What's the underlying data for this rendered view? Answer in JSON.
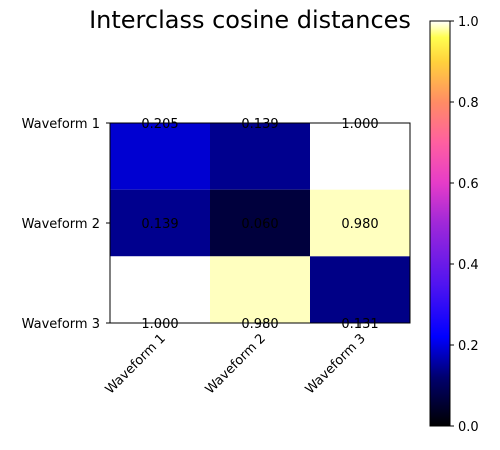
{
  "chart_data": {
    "type": "heatmap",
    "title": "Interclass cosine distances",
    "x_categories": [
      "Waveform 1",
      "Waveform 2",
      "Waveform 3"
    ],
    "y_categories": [
      "Waveform 1",
      "Waveform 2",
      "Waveform 3"
    ],
    "values": [
      [
        0.205,
        0.139,
        1.0
      ],
      [
        0.139,
        0.06,
        0.98
      ],
      [
        1.0,
        0.98,
        0.131
      ]
    ],
    "cell_labels": [
      [
        "0.205",
        "0.139",
        "1.000"
      ],
      [
        "0.139",
        "0.060",
        "0.980"
      ],
      [
        "1.000",
        "0.980",
        "0.131"
      ]
    ],
    "colormap": "gnuplot2",
    "vmin": 0.0,
    "vmax": 1.0,
    "colorbar_ticks": [
      "0.0",
      "0.2",
      "0.4",
      "0.6",
      "0.8",
      "1.0"
    ],
    "colorbar_tick_values": [
      0.0,
      0.2,
      0.4,
      0.6,
      0.8,
      1.0
    ],
    "x_tick_rotation_deg": 45,
    "grid": false
  }
}
